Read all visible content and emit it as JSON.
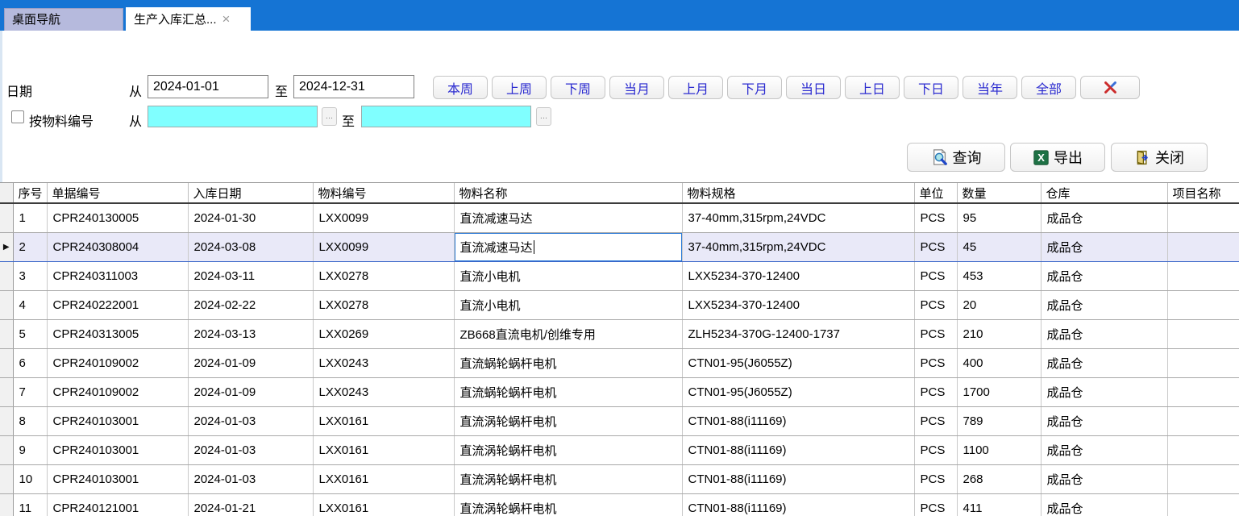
{
  "tabs": {
    "desktop_nav": "桌面导航",
    "active_tab": "生产入库汇总...",
    "close_glyph": "×"
  },
  "filters": {
    "date_label": "日期",
    "from_label": "从",
    "to_label": "至",
    "date_from": "2024-01-01",
    "date_to": "2024-12-31",
    "quick_buttons": [
      "本周",
      "上周",
      "下周",
      "当月",
      "上月",
      "下月",
      "当日",
      "上日",
      "下日",
      "当年",
      "全部"
    ],
    "clear_icon_name": "clear-x-icon",
    "material_checkbox_label": "按物料编号",
    "material_checkbox_checked": false,
    "material_from_value": "",
    "material_to_value": "",
    "browse_button_label": "..."
  },
  "actions": {
    "query_label": "查询",
    "query_icon": "search-document-icon",
    "export_label": "导出",
    "export_icon": "excel-icon",
    "close_label": "关闭",
    "close_icon": "exit-door-icon"
  },
  "table": {
    "headers": [
      "序号",
      "单据编号",
      "入库日期",
      "物料编号",
      "物料名称",
      "物料规格",
      "单位",
      "数量",
      "仓库",
      "项目名称"
    ],
    "selected_row_index": 1,
    "current_row_arrow": "▶",
    "rows": [
      [
        "1",
        "CPR240130005",
        "2024-01-30",
        "LXX0099",
        "直流减速马达",
        "37-40mm,315rpm,24VDC",
        "PCS",
        "95",
        "成品仓",
        ""
      ],
      [
        "2",
        "CPR240308004",
        "2024-03-08",
        "LXX0099",
        "直流减速马达",
        "37-40mm,315rpm,24VDC",
        "PCS",
        "45",
        "成品仓",
        ""
      ],
      [
        "3",
        "CPR240311003",
        "2024-03-11",
        "LXX0278",
        "直流小电机",
        "LXX5234-370-12400",
        "PCS",
        "453",
        "成品仓",
        ""
      ],
      [
        "4",
        "CPR240222001",
        "2024-02-22",
        "LXX0278",
        "直流小电机",
        "LXX5234-370-12400",
        "PCS",
        "20",
        "成品仓",
        ""
      ],
      [
        "5",
        "CPR240313005",
        "2024-03-13",
        "LXX0269",
        "ZB668直流电机/创维专用",
        "ZLH5234-370G-12400-1737",
        "PCS",
        "210",
        "成品仓",
        ""
      ],
      [
        "6",
        "CPR240109002",
        "2024-01-09",
        "LXX0243",
        "直流蜗轮蜗杆电机",
        "CTN01-95(J6055Z)",
        "PCS",
        "400",
        "成品仓",
        ""
      ],
      [
        "7",
        "CPR240109002",
        "2024-01-09",
        "LXX0243",
        "直流蜗轮蜗杆电机",
        "CTN01-95(J6055Z)",
        "PCS",
        "1700",
        "成品仓",
        ""
      ],
      [
        "8",
        "CPR240103001",
        "2024-01-03",
        "LXX0161",
        "直流涡轮蜗杆电机",
        "CTN01-88(i11169)",
        "PCS",
        "789",
        "成品仓",
        ""
      ],
      [
        "9",
        "CPR240103001",
        "2024-01-03",
        "LXX0161",
        "直流涡轮蜗杆电机",
        "CTN01-88(i11169)",
        "PCS",
        "1100",
        "成品仓",
        ""
      ],
      [
        "10",
        "CPR240103001",
        "2024-01-03",
        "LXX0161",
        "直流涡轮蜗杆电机",
        "CTN01-88(i11169)",
        "PCS",
        "268",
        "成品仓",
        ""
      ],
      [
        "11",
        "CPR240121001",
        "2024-01-21",
        "LXX0161",
        "直流涡轮蜗杆电机",
        "CTN01-88(i11169)",
        "PCS",
        "411",
        "成品仓",
        ""
      ]
    ]
  },
  "colors": {
    "topbar_blue": "#1574d4",
    "inactive_tab": "#b6badd",
    "quick_button_text": "#2b2bd0",
    "material_input_cyan": "#80ffff",
    "selected_row_bg": "#e9e9f8",
    "selection_border_blue": "#3a66c8",
    "excel_green": "#1e7145"
  }
}
